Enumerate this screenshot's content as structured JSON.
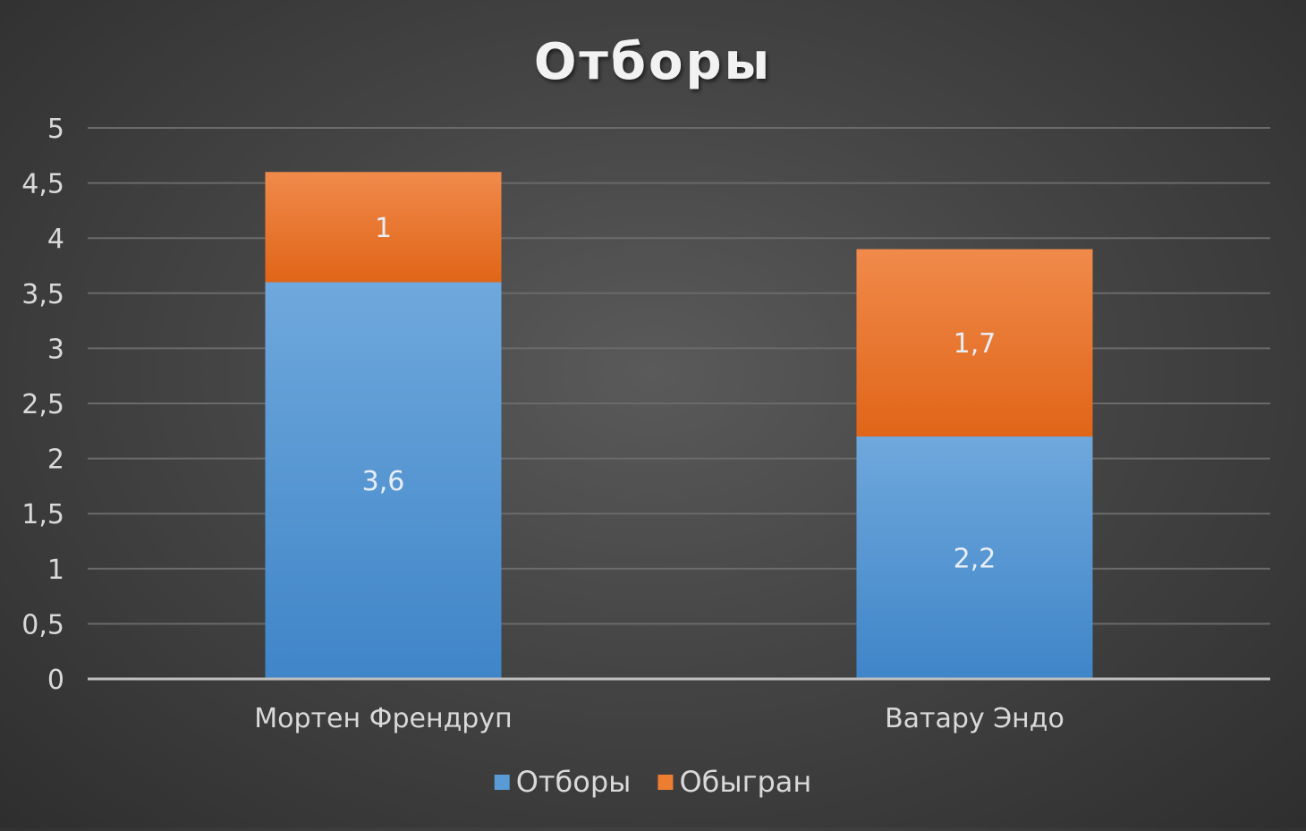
{
  "chart_data": {
    "type": "bar",
    "stacked": true,
    "title": "Отборы",
    "categories": [
      "Мортен Френдруп",
      "Ватару Эндо"
    ],
    "series": [
      {
        "name": "Отборы",
        "values": [
          3.6,
          2.2
        ],
        "labels": [
          "3,6",
          "2,2"
        ],
        "color": "#5b9bd5"
      },
      {
        "name": "Обыгран",
        "values": [
          1,
          1.7
        ],
        "labels": [
          "1",
          "1,7"
        ],
        "color": "#ed7d31"
      }
    ],
    "yticks": [
      0,
      0.5,
      1,
      1.5,
      2,
      2.5,
      3,
      3.5,
      4,
      4.5,
      5
    ],
    "ytick_labels": [
      "0",
      "0,5",
      "1",
      "1,5",
      "2",
      "2,5",
      "3",
      "3,5",
      "4",
      "4,5",
      "5"
    ],
    "ylim": [
      0,
      5
    ],
    "grid": true,
    "legend_position": "bottom"
  }
}
